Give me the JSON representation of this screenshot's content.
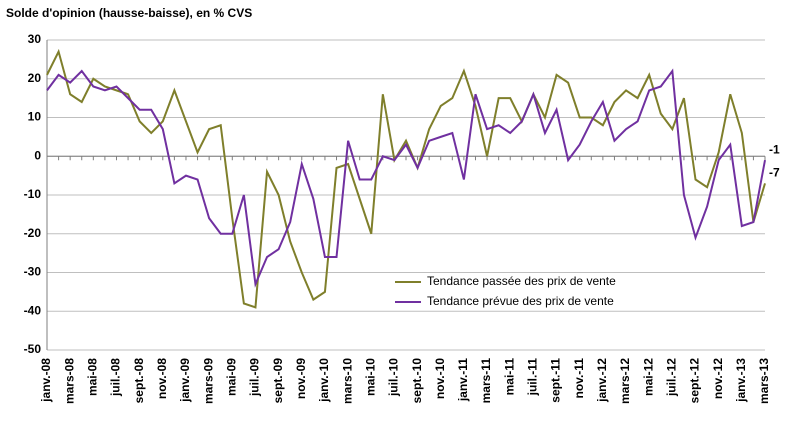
{
  "chart_data": {
    "type": "line",
    "title": "Solde d'opinion (hausse-baisse), en % CVS",
    "categories": [
      "janv.-08",
      null,
      "mars-08",
      null,
      "mai-08",
      null,
      "juil.-08",
      null,
      "sept.-08",
      null,
      "nov.-08",
      null,
      "janv.-09",
      null,
      "mars-09",
      null,
      "mai-09",
      null,
      "juil.-09",
      null,
      "sept.-09",
      null,
      "nov.-09",
      null,
      "janv.-10",
      null,
      "mars-10",
      null,
      "mai-10",
      null,
      "juil.-10",
      null,
      "sept.-10",
      null,
      "nov.-10",
      null,
      "janv.-11",
      null,
      "mars-11",
      null,
      "mai-11",
      null,
      "juil.-11",
      null,
      "sept.-11",
      null,
      "nov.-11",
      null,
      "janv.-12",
      null,
      "mars-12",
      null,
      "mai-12",
      null,
      "juil.-12",
      null,
      "sept.-12",
      null,
      "nov.-12",
      null,
      "janv.-13",
      null,
      "mars-13"
    ],
    "series": [
      {
        "name": "Tendance passée des prix de vente",
        "color": "#7f7f2b",
        "values": [
          21,
          27,
          16,
          14,
          20,
          18,
          17,
          16,
          9,
          6,
          9,
          17,
          9,
          1,
          7,
          8,
          -16,
          -38,
          -39,
          -4,
          -10,
          -22,
          -30,
          -37,
          -35,
          -3,
          -2,
          -11,
          -20,
          16,
          -1,
          4,
          -3,
          7,
          13,
          15,
          22,
          13,
          0,
          15,
          15,
          9,
          16,
          10,
          21,
          19,
          10,
          10,
          8,
          14,
          17,
          15,
          21,
          11,
          7,
          15,
          -6,
          -8,
          1,
          16,
          6,
          -17,
          -7
        ]
      },
      {
        "name": "Tendance prévue des prix de vente",
        "color": "#7030a0",
        "values": [
          17,
          21,
          19,
          22,
          18,
          17,
          18,
          15,
          12,
          12,
          7,
          -7,
          -5,
          -6,
          -16,
          -20,
          -20,
          -10,
          -33,
          -26,
          -24,
          -17,
          -2,
          -11,
          -26,
          -26,
          4,
          -6,
          -6,
          0,
          -1,
          3,
          -3,
          4,
          5,
          6,
          -6,
          16,
          7,
          8,
          6,
          9,
          16,
          6,
          12,
          -1,
          3,
          9,
          14,
          4,
          7,
          9,
          17,
          18,
          22,
          -10,
          -21,
          -13,
          -1,
          3,
          -18,
          -17,
          -1
        ]
      }
    ],
    "ylim": [
      -50,
      30
    ],
    "yticks": [
      -50,
      -40,
      -30,
      -20,
      -10,
      0,
      10,
      20,
      30
    ],
    "grid": true,
    "legend": "center"
  }
}
